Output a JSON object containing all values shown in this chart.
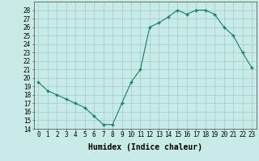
{
  "x": [
    0,
    1,
    2,
    3,
    4,
    5,
    6,
    7,
    8,
    9,
    10,
    11,
    12,
    13,
    14,
    15,
    16,
    17,
    18,
    19,
    20,
    21,
    22,
    23
  ],
  "y": [
    19.5,
    18.5,
    18.0,
    17.5,
    17.0,
    16.5,
    15.5,
    14.5,
    14.5,
    17.0,
    19.5,
    21.0,
    26.0,
    26.5,
    27.2,
    28.0,
    27.5,
    28.0,
    28.0,
    27.5,
    26.0,
    25.0,
    23.0,
    21.2
  ],
  "xlabel": "Humidex (Indice chaleur)",
  "ylim": [
    14,
    29
  ],
  "xlim": [
    -0.5,
    23.5
  ],
  "yticks": [
    14,
    15,
    16,
    17,
    18,
    19,
    20,
    21,
    22,
    23,
    24,
    25,
    26,
    27,
    28
  ],
  "xticks": [
    0,
    1,
    2,
    3,
    4,
    5,
    6,
    7,
    8,
    9,
    10,
    11,
    12,
    13,
    14,
    15,
    16,
    17,
    18,
    19,
    20,
    21,
    22,
    23
  ],
  "line_color": "#1a7a6e",
  "marker_color": "#1a7a6e",
  "bg_color": "#c8ebe8",
  "grid_color": "#9ecec8",
  "text_color": "#000000",
  "xlabel_fontsize": 7,
  "tick_fontsize": 5.5
}
